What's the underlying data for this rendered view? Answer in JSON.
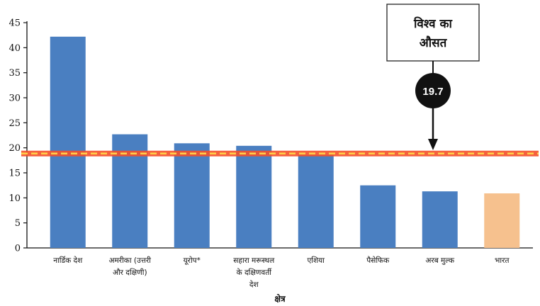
{
  "chart_data": {
    "type": "bar",
    "categories": [
      [
        "नार्डिक देश"
      ],
      [
        "अमरीका (उत्तरी",
        "और दक्षिणी)"
      ],
      [
        "यूरोप*"
      ],
      [
        "सहारा मरूस्थल",
        "के दक्षिणवर्ती",
        "देश"
      ],
      [
        "एशिया"
      ],
      [
        "पैसेफिक"
      ],
      [
        "अरब मुल्क"
      ],
      [
        "भारत"
      ]
    ],
    "values": [
      42.2,
      22.7,
      20.9,
      20.4,
      18.6,
      12.5,
      11.3,
      10.9
    ],
    "highlight": [
      "भारत"
    ],
    "xlabel": "क्षेत्र",
    "ylabel": "",
    "ylim": [
      0,
      45
    ],
    "yticks": [
      0,
      5,
      10,
      15,
      20,
      25,
      30,
      35,
      40,
      45
    ],
    "reference_line": {
      "value": 19.7,
      "label": "19.7"
    },
    "callout": [
      "विश्व का",
      "औसत"
    ],
    "grid": false,
    "colors": {
      "bar": "#4a7fc1",
      "highlight_bar": "#f6c18e",
      "reference_line": "#f4512b",
      "reference_dash": "#ffd24a",
      "bubble": "#111111"
    }
  }
}
